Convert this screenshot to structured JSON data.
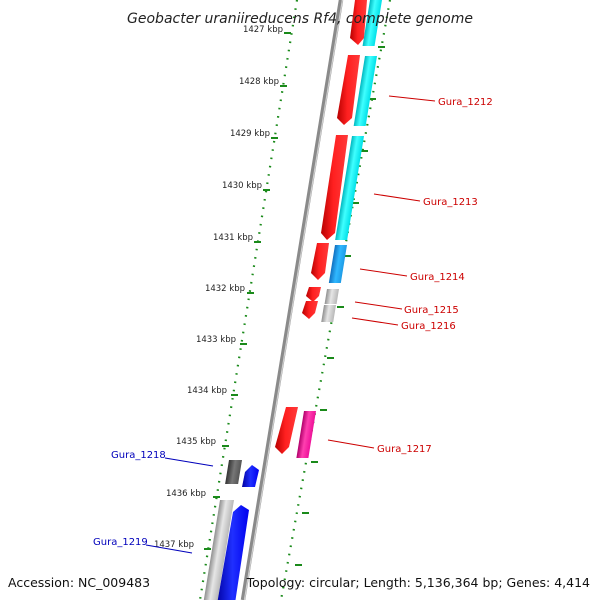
{
  "header": {
    "title": "Geobacter uraniireducens Rf4, complete genome"
  },
  "footer": {
    "accession": "Accession: NC_009483",
    "summary": "Topology: circular; Length: 5,136,364 bp; Genes: 4,414"
  },
  "ruler": {
    "tick_labels": [
      "1427 kbp",
      "1428 kbp",
      "1429 kbp",
      "1430 kbp",
      "1431 kbp",
      "1432 kbp",
      "1433 kbp",
      "1434 kbp",
      "1435 kbp",
      "1436 kbp",
      "1437 kbp"
    ]
  },
  "genes": [
    {
      "label": "Gura_1212",
      "color": "#cc0000"
    },
    {
      "label": "Gura_1213",
      "color": "#cc0000"
    },
    {
      "label": "Gura_1214",
      "color": "#cc0000"
    },
    {
      "label": "Gura_1215",
      "color": "#cc0000"
    },
    {
      "label": "Gura_1216",
      "color": "#cc0000"
    },
    {
      "label": "Gura_1217",
      "color": "#cc0000"
    },
    {
      "label": "Gura_1218",
      "color": "#0000bb"
    },
    {
      "label": "Gura_1219",
      "color": "#0000bb"
    }
  ],
  "palette": {
    "forward_gene": "#ff0000",
    "cog_cyan": "#00e0e0",
    "cog_sky": "#1e9be6",
    "cog_magenta": "#ee1199",
    "cog_grey": "#b8b8b8",
    "cog_dark_grey": "#555555",
    "reverse_gene": "#0000ee",
    "backbone": "#888888",
    "ruler_dots": "#1a8a1a"
  }
}
